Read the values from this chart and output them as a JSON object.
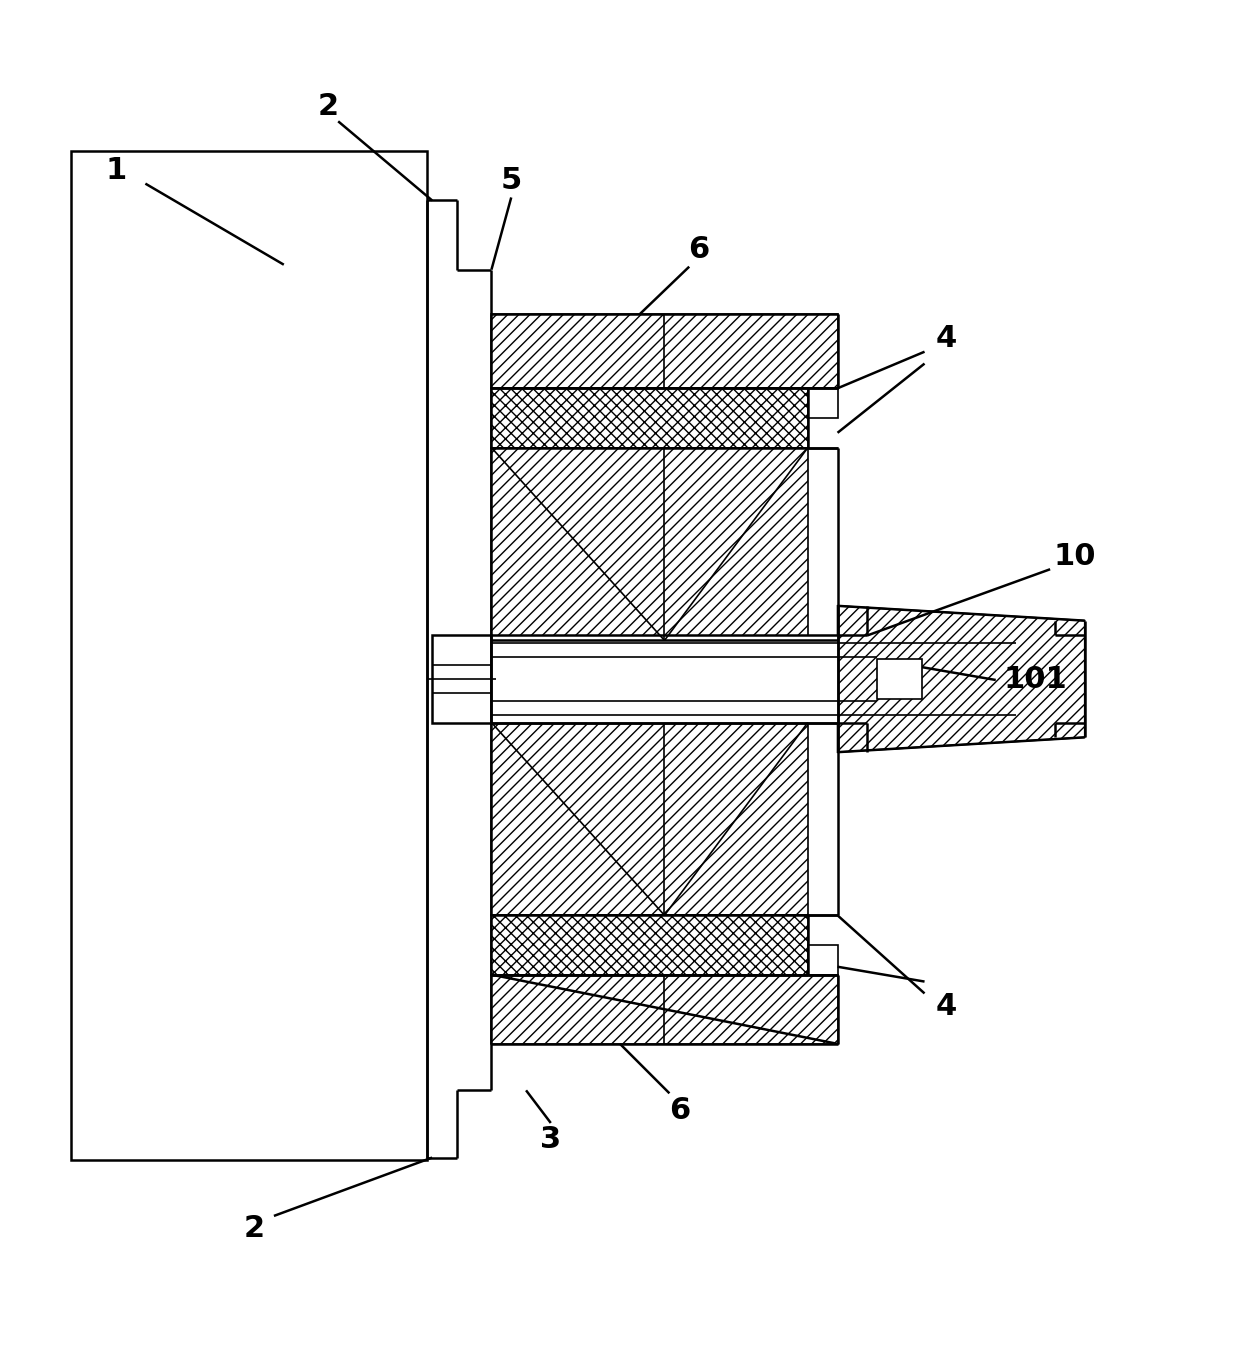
{
  "bg_color": "#ffffff",
  "lw": 1.8,
  "lw_thin": 1.2,
  "fig_width": 12.4,
  "fig_height": 13.58,
  "font_size": 22
}
